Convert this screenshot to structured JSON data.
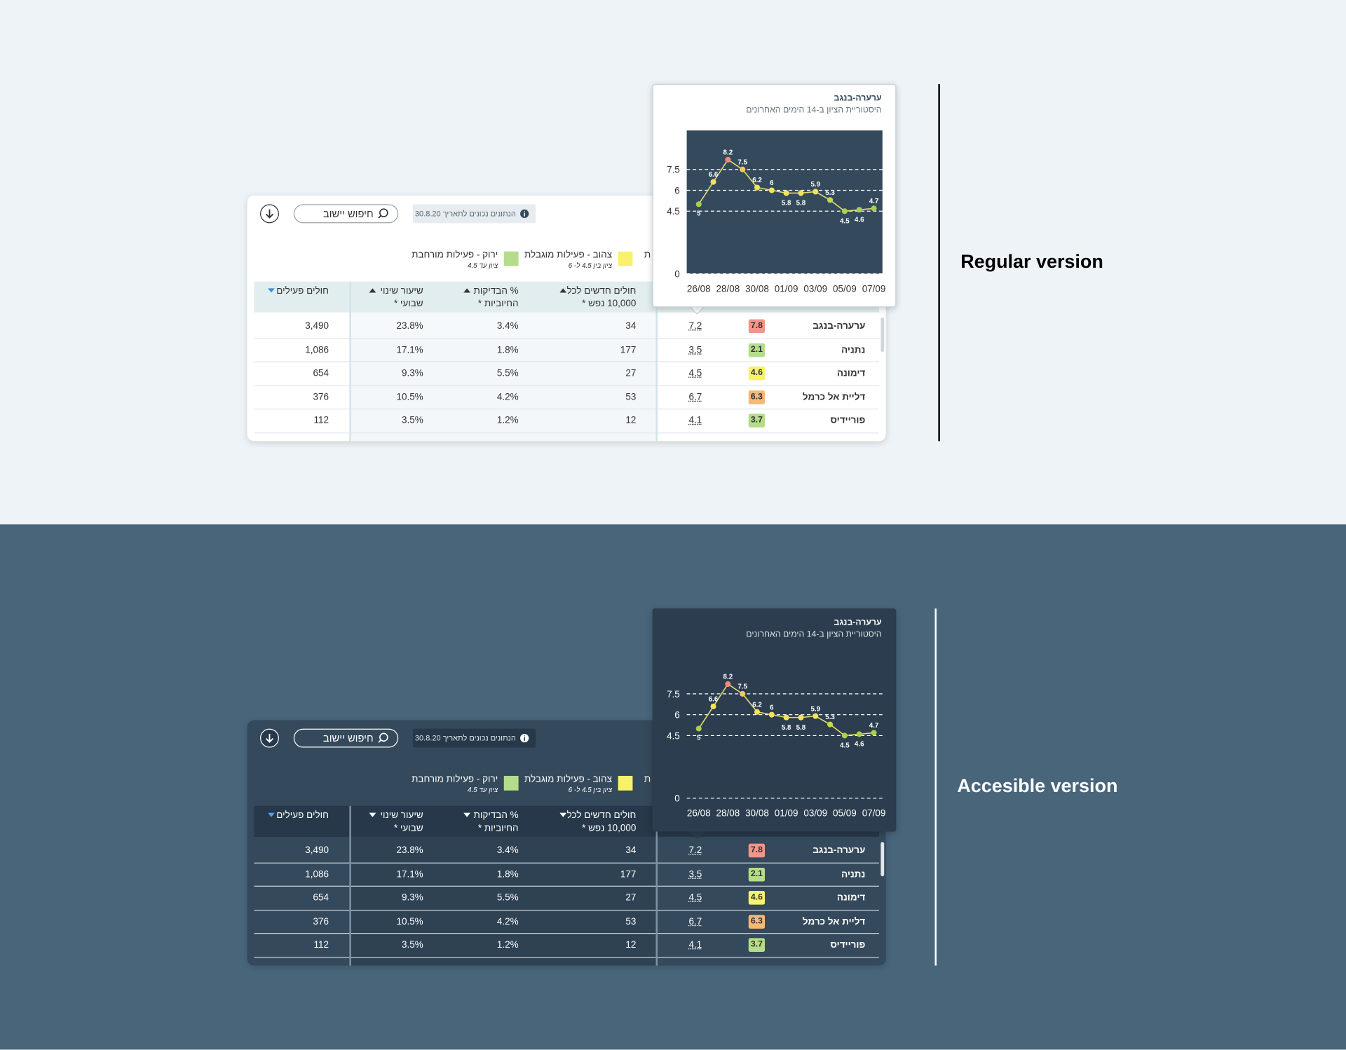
{
  "versions": [
    {
      "label": "Regular version"
    },
    {
      "label": "Accesible version"
    }
  ],
  "toolbar": {
    "search": "חיפוש יישוב",
    "date_note": "הנתונים נכונים לתאריך 30.8.20"
  },
  "legend": [
    {
      "label": "ירוק - פעילות מורחבת",
      "note": "ציון עד 4.5",
      "color": "#b4dc8b"
    },
    {
      "label": "צהוב - פעילות מוגבלת",
      "note": "ציון בין 4.5 ל- 6",
      "color": "#f7f26b"
    },
    {
      "label": "ת"
    }
  ],
  "table": {
    "headers": [
      {
        "lines": [
          "חולים חדשים לכל",
          "10,000 נפש *"
        ]
      },
      {
        "lines": [
          "% הבדיקות",
          "החיוביות *"
        ]
      },
      {
        "lines": [
          "שיעור שינוי",
          "שבועי *"
        ]
      },
      {
        "lines": [
          "חולים פעילים"
        ]
      }
    ],
    "rows": [
      {
        "name": "ערערה-בנגב",
        "score": "7.8",
        "score_color": "#f2958a",
        "index": "7.2",
        "new_cases": "34",
        "positive_rate": "3.4%",
        "weekly_change": "23.8%",
        "active": "3,490"
      },
      {
        "name": "נתניה",
        "score": "2.1",
        "score_color": "#b4dc8b",
        "index": "3.5",
        "new_cases": "177",
        "positive_rate": "1.8%",
        "weekly_change": "17.1%",
        "active": "1,086"
      },
      {
        "name": "דימונה",
        "score": "4.6",
        "score_color": "#f7f26b",
        "index": "4.5",
        "new_cases": "27",
        "positive_rate": "5.5%",
        "weekly_change": "9.3%",
        "active": "654"
      },
      {
        "name": "דליית אל כרמל",
        "score": "6.3",
        "score_color": "#f5b877",
        "index": "6.7",
        "new_cases": "53",
        "positive_rate": "4.2%",
        "weekly_change": "10.5%",
        "active": "376"
      },
      {
        "name": "פוריידיס",
        "score": "3.7",
        "score_color": "#b4dc8b",
        "index": "4.1",
        "new_cases": "12",
        "positive_rate": "1.2%",
        "weekly_change": "3.5%",
        "active": "112"
      }
    ]
  },
  "chart_data": {
    "type": "line",
    "title": "ערערה-בנגב",
    "subtitle": "היסטוריית הציון ב-14 הימים האחרונים",
    "categories": [
      "26/08",
      null,
      "28/08",
      null,
      "30/08",
      null,
      "01/09",
      null,
      "03/09",
      null,
      "05/09",
      null,
      "07/09"
    ],
    "values": [
      5,
      6.6,
      8.2,
      7.5,
      6.2,
      6,
      5.8,
      5.8,
      5.9,
      5.3,
      4.5,
      4.6,
      4.7
    ],
    "point_colors": [
      "#a6d04e",
      "#f4e45a",
      "#f08a7a",
      "#f7c85c",
      "#f4e45a",
      "#f4e45a",
      "#f4e45a",
      "#f4e45a",
      "#f4e45a",
      "#c7d84e",
      "#a6d04e",
      "#a6d04e",
      "#a6d04e"
    ],
    "color": "#e3dc6b",
    "ylim": [
      0,
      10.3
    ],
    "yticks": [
      0,
      4.5,
      6,
      7.5
    ],
    "grid": true
  }
}
